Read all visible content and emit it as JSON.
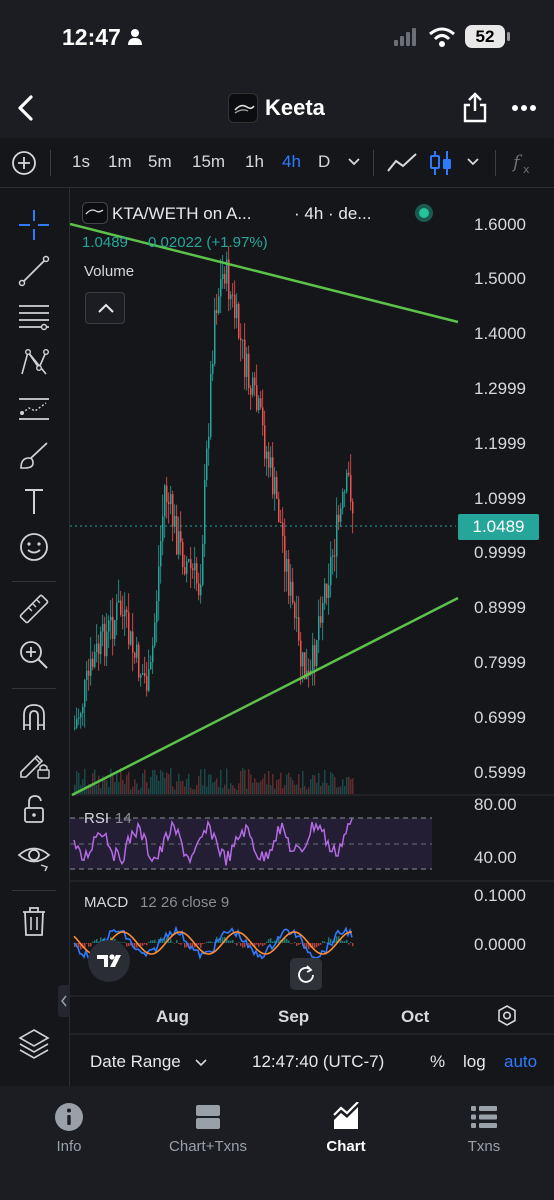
{
  "status": {
    "time": "12:47",
    "battery": "52"
  },
  "nav": {
    "title": "Keeta"
  },
  "toolbar": {
    "timeframes": [
      "1s",
      "1m",
      "5m",
      "15m",
      "1h",
      "4h",
      "D"
    ],
    "active_tf": "4h"
  },
  "legend": {
    "pair": "KTA/WETH on A...",
    "interval": "· 4h · de...",
    "price_line": "1.0489",
    "change": "0.02022 (+1.97%)",
    "volume_label": "Volume"
  },
  "price_axis": {
    "labels": [
      "1.6000",
      "1.5000",
      "1.4000",
      "1.2999",
      "1.1999",
      "1.0999",
      "0.9999",
      "0.8999",
      "0.7999",
      "0.6999",
      "0.5999"
    ],
    "current_price": "1.0489",
    "current_price_color": "#26a69a"
  },
  "rsi": {
    "label": "RSI",
    "period": "14",
    "axis": [
      "80.00",
      "40.00"
    ],
    "color": "#b36ae2"
  },
  "macd": {
    "label": "MACD",
    "params": "12 26 close 9",
    "axis": [
      "0.1000",
      "0.0000"
    ]
  },
  "time_axis": {
    "labels": [
      "Aug",
      "Sep",
      "Oct"
    ]
  },
  "bottom_bar": {
    "date_range": "Date Range",
    "clock": "12:47:40 (UTC-7)",
    "percent": "%",
    "log": "log",
    "auto": "auto"
  },
  "tabs": [
    {
      "label": "Info",
      "icon": "info-icon"
    },
    {
      "label": "Chart+Txns",
      "icon": "split-view-icon"
    },
    {
      "label": "Chart",
      "icon": "area-chart-icon",
      "active": true
    },
    {
      "label": "Txns",
      "icon": "list-icon"
    }
  ],
  "colors": {
    "up": "#26a69a",
    "down": "#ef5350",
    "trendline": "#5cc24a",
    "accent": "#2f7bff"
  }
}
